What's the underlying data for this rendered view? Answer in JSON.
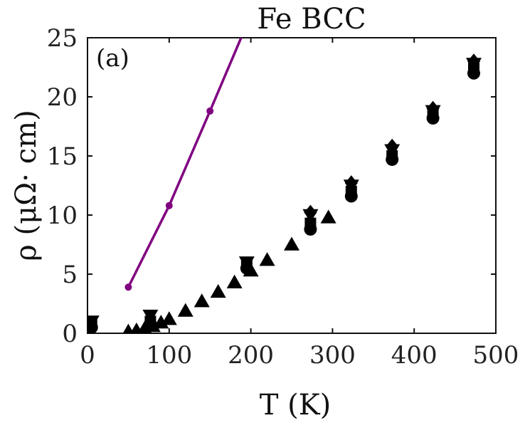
{
  "chart_data": {
    "type": "scatter",
    "title": "Fe BCC",
    "panel_label": "(a)",
    "xlabel": "T (K)",
    "ylabel": "ρ (μΩ· cm)",
    "xlim": [
      0,
      500
    ],
    "ylim": [
      0,
      25
    ],
    "x_ticks": [
      0,
      100,
      200,
      300,
      400,
      500
    ],
    "y_ticks": [
      0,
      5,
      10,
      15,
      20,
      25
    ],
    "grid": false,
    "colors": {
      "line_series": "#800080",
      "marker_series": "#000000",
      "axes": "#111111"
    },
    "series": [
      {
        "marker": "line-dot",
        "points": [
          [
            50,
            3.9
          ],
          [
            100,
            10.8
          ],
          [
            150,
            18.8
          ],
          [
            190,
            25.3
          ]
        ]
      },
      {
        "marker": "triangle-up",
        "points": [
          [
            50,
            0.15
          ],
          [
            60,
            0.25
          ],
          [
            70,
            0.4
          ],
          [
            80,
            0.6
          ],
          [
            90,
            0.9
          ],
          [
            100,
            1.2
          ],
          [
            120,
            1.9
          ],
          [
            140,
            2.7
          ],
          [
            160,
            3.5
          ],
          [
            180,
            4.3
          ],
          [
            200,
            5.3
          ],
          [
            220,
            6.2
          ],
          [
            250,
            7.5
          ],
          [
            295,
            9.8
          ]
        ]
      },
      {
        "marker": "triangle-down",
        "points": [
          [
            5,
            1.0
          ],
          [
            77,
            1.5
          ],
          [
            195,
            6.0
          ],
          [
            273,
            10.0
          ],
          [
            323,
            12.5
          ],
          [
            373,
            15.5
          ],
          [
            423,
            18.8
          ],
          [
            473,
            22.8
          ]
        ]
      },
      {
        "marker": "square",
        "points": [
          [
            5,
            0.7
          ],
          [
            77,
            1.0
          ],
          [
            195,
            5.7
          ],
          [
            273,
            9.3
          ],
          [
            323,
            12.0
          ],
          [
            373,
            15.0
          ],
          [
            423,
            18.5
          ],
          [
            473,
            22.4
          ]
        ]
      },
      {
        "marker": "circle",
        "points": [
          [
            5,
            0.5
          ],
          [
            77,
            0.8
          ],
          [
            195,
            5.5
          ],
          [
            273,
            8.8
          ],
          [
            323,
            11.6
          ],
          [
            373,
            14.7
          ],
          [
            423,
            18.2
          ],
          [
            473,
            22.0
          ]
        ]
      },
      {
        "marker": "diamond",
        "points": [
          [
            273,
            10.2
          ],
          [
            323,
            12.7
          ],
          [
            373,
            15.8
          ],
          [
            423,
            19.0
          ],
          [
            473,
            23.0
          ]
        ]
      }
    ]
  }
}
